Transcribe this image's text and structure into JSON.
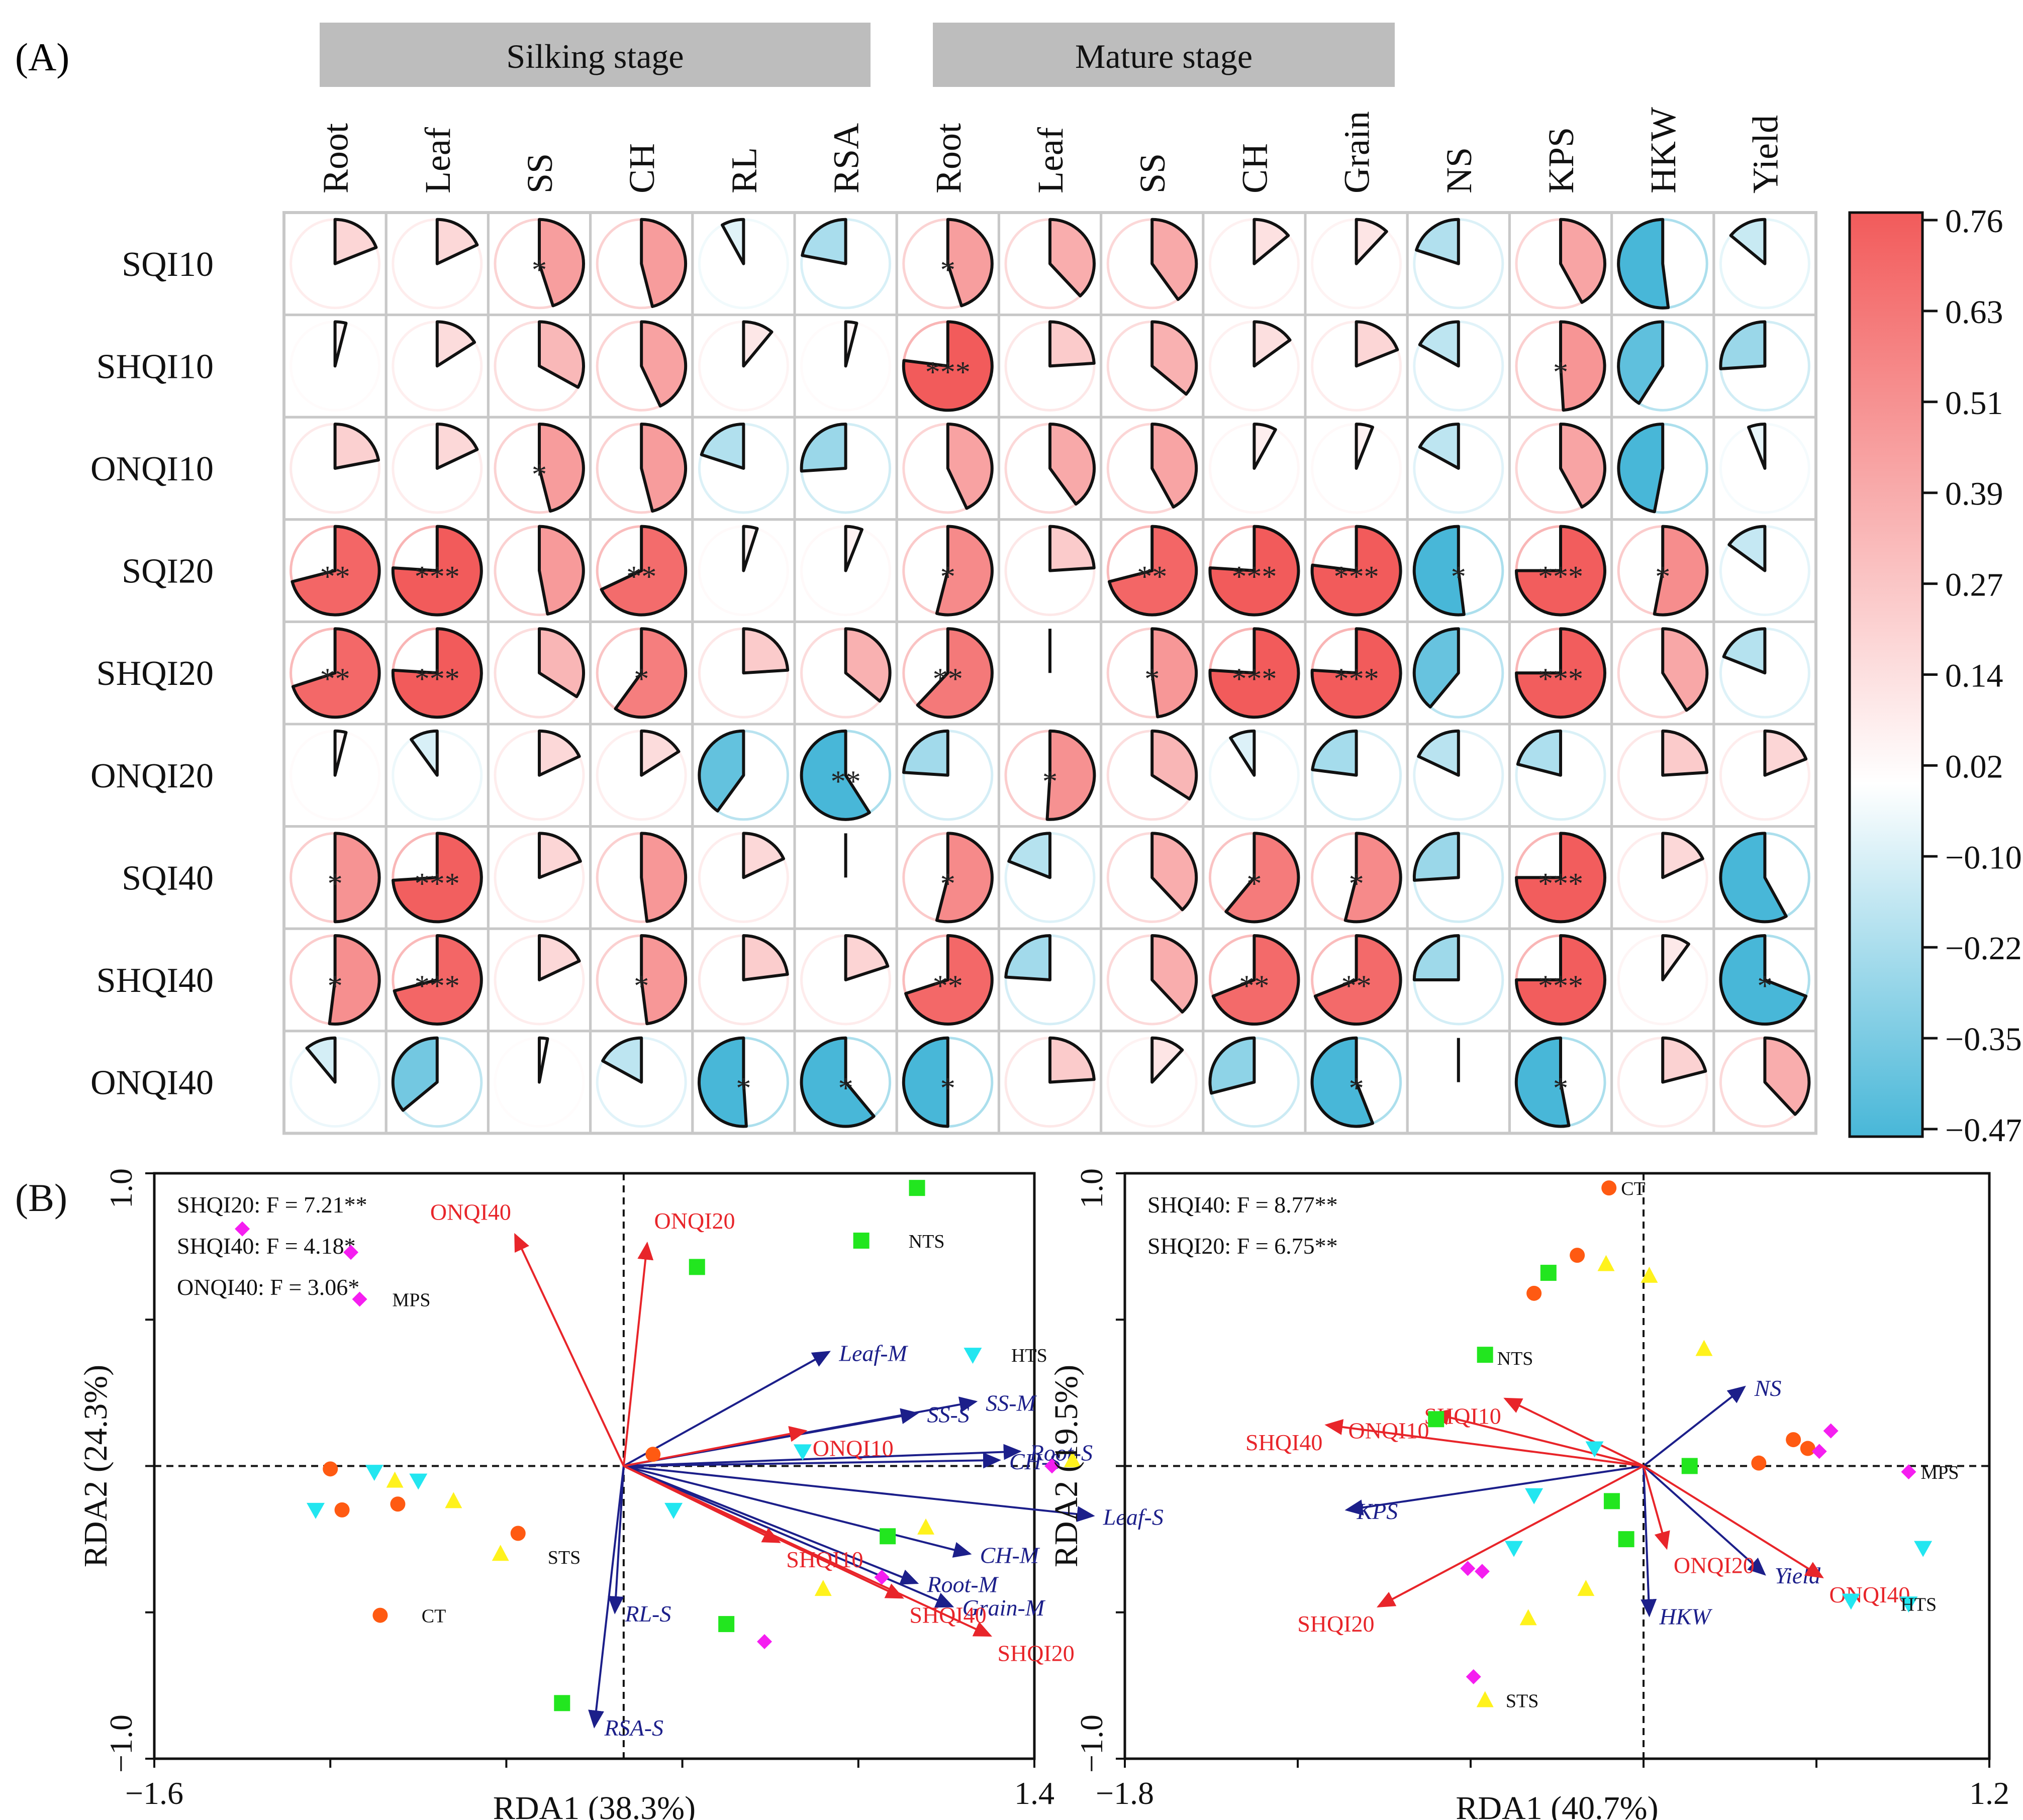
{
  "panel_a": {
    "label": "(A)",
    "groups": [
      {
        "label": "Silking stage",
        "start": 0,
        "end": 6
      },
      {
        "label": "Mature stage",
        "start": 6,
        "end": 11
      }
    ],
    "colorbar": {
      "ticks": [
        "0.76",
        "0.63",
        "0.51",
        "0.39",
        "0.27",
        "0.14",
        "0.02",
        "−0.10",
        "−0.22",
        "−0.35",
        "−0.47"
      ],
      "min": -0.47,
      "max": 0.76,
      "colors": {
        "neg": "#48b7d8",
        "mid": "#ffffff",
        "pos": "#f25b5b"
      }
    }
  },
  "chart_data": [
    {
      "type": "heatmap",
      "title": "",
      "columns": [
        "Root",
        "Leaf",
        "SS",
        "CH",
        "RL",
        "RSA",
        "Root",
        "Leaf",
        "SS",
        "CH",
        "Grain",
        "NS",
        "KPS",
        "HKW",
        "Yield"
      ],
      "rows": [
        "SQI10",
        "SHQI10",
        "ONQI10",
        "SQI20",
        "SHQI20",
        "ONQI20",
        "SQI40",
        "SHQI40",
        "ONQI40"
      ],
      "values": [
        [
          0.19,
          0.18,
          0.45,
          0.46,
          -0.08,
          -0.22,
          0.45,
          0.38,
          0.4,
          0.14,
          0.12,
          -0.2,
          0.42,
          -0.52,
          -0.14
        ],
        [
          0.04,
          0.16,
          0.33,
          0.43,
          0.11,
          0.04,
          0.77,
          0.24,
          0.36,
          0.15,
          0.19,
          -0.17,
          0.49,
          -0.41,
          -0.26
        ],
        [
          0.22,
          0.18,
          0.46,
          0.46,
          -0.2,
          -0.26,
          0.43,
          0.4,
          0.42,
          0.08,
          0.06,
          -0.17,
          0.42,
          -0.47,
          -0.06
        ],
        [
          0.71,
          0.76,
          0.47,
          0.68,
          0.05,
          0.06,
          0.54,
          0.24,
          0.71,
          0.76,
          0.77,
          -0.52,
          0.75,
          0.53,
          -0.15
        ],
        [
          0.7,
          0.76,
          0.34,
          0.6,
          0.24,
          0.36,
          0.62,
          0.0,
          0.48,
          0.76,
          0.76,
          -0.39,
          0.75,
          0.41,
          -0.19
        ],
        [
          0.04,
          -0.1,
          0.18,
          0.16,
          -0.4,
          -0.59,
          -0.24,
          0.51,
          0.34,
          -0.09,
          -0.23,
          -0.18,
          -0.21,
          0.24,
          0.19
        ],
        [
          0.5,
          0.74,
          0.19,
          0.48,
          0.18,
          0.0,
          0.54,
          -0.19,
          0.38,
          0.61,
          0.54,
          -0.26,
          0.75,
          0.18,
          -0.58
        ],
        [
          0.52,
          0.71,
          0.18,
          0.48,
          0.23,
          0.2,
          0.7,
          -0.24,
          0.38,
          0.69,
          0.69,
          -0.25,
          0.75,
          0.1,
          -0.69
        ],
        [
          -0.11,
          -0.36,
          0.03,
          -0.17,
          -0.51,
          -0.61,
          -0.5,
          0.24,
          0.12,
          -0.29,
          -0.56,
          0.0,
          -0.53,
          0.21,
          0.38
        ]
      ],
      "stars": [
        [
          "",
          "",
          "*",
          "",
          "",
          "",
          "*",
          "",
          "",
          "",
          "",
          "",
          "",
          "",
          ""
        ],
        [
          "",
          "",
          "",
          "",
          "",
          "",
          "***",
          "",
          "",
          "",
          "",
          "",
          "*",
          "",
          ""
        ],
        [
          "",
          "",
          "*",
          "",
          "",
          "",
          "",
          "",
          "",
          "",
          "",
          "",
          "",
          "",
          ""
        ],
        [
          "**",
          "***",
          "",
          "**",
          "",
          "",
          "*",
          "",
          "**",
          "***",
          "***",
          "*",
          "***",
          "*",
          ""
        ],
        [
          "**",
          "***",
          "",
          "*",
          "",
          "",
          "**",
          "",
          "*",
          "***",
          "***",
          "",
          "***",
          "",
          ""
        ],
        [
          "",
          "",
          "",
          "",
          "",
          "**",
          "",
          "*",
          "",
          "",
          "",
          "",
          "",
          "",
          ""
        ],
        [
          "*",
          "***",
          "",
          "",
          "",
          "",
          "*",
          "",
          "",
          "*",
          "*",
          "",
          "***",
          "",
          ""
        ],
        [
          "*",
          "***",
          "",
          "*",
          "",
          "",
          "**",
          "",
          "",
          "**",
          "**",
          "",
          "***",
          "",
          "*"
        ],
        [
          "",
          "",
          "",
          "",
          "*",
          "*",
          "*",
          "",
          "",
          "",
          "*",
          "",
          "*",
          "",
          ""
        ]
      ]
    },
    {
      "type": "scatter",
      "title": "(B)",
      "xlabel": "RDA1 (38.3%)",
      "ylabel": "RDA2 (24.3%)",
      "xlim": [
        -1.6,
        1.4
      ],
      "ylim": [
        -1.0,
        1.0
      ],
      "x_ticks": [
        "−1.6",
        "1.4"
      ],
      "y_ticks": [
        "1.0",
        "−1.0"
      ],
      "stats": [
        "SHQI20: F = 7.21**",
        "SHQI40: F = 4.18*",
        "ONQI40: F = 3.06*"
      ],
      "env_arrows": [
        {
          "name": "ONQI40",
          "x": -0.37,
          "y": 0.79
        },
        {
          "name": "ONQI20",
          "x": 0.08,
          "y": 0.76
        },
        {
          "name": "ONQI10",
          "x": 0.62,
          "y": 0.12
        },
        {
          "name": "SHQI10",
          "x": 0.53,
          "y": -0.26
        },
        {
          "name": "SHQI40",
          "x": 0.95,
          "y": -0.45
        },
        {
          "name": "SHQI20",
          "x": 1.25,
          "y": -0.58
        }
      ],
      "response_arrows": [
        {
          "name": "Leaf-M",
          "x": 0.7,
          "y": 0.39
        },
        {
          "name": "SS-S",
          "x": 1.0,
          "y": 0.18
        },
        {
          "name": "SS-M",
          "x": 1.2,
          "y": 0.22
        },
        {
          "name": "Root-S",
          "x": 1.35,
          "y": 0.05
        },
        {
          "name": "CH-S",
          "x": 1.28,
          "y": 0.02
        },
        {
          "name": "Leaf-S",
          "x": 1.6,
          "y": -0.17
        },
        {
          "name": "CH-M",
          "x": 1.18,
          "y": -0.3
        },
        {
          "name": "Root-M",
          "x": 1.0,
          "y": -0.4
        },
        {
          "name": "Grain-M",
          "x": 1.12,
          "y": -0.48
        },
        {
          "name": "RL-S",
          "x": -0.03,
          "y": -0.5
        },
        {
          "name": "RSA-S",
          "x": -0.1,
          "y": -0.89
        }
      ],
      "sample_labels": [
        {
          "name": "NTS",
          "x": 0.93,
          "y": 0.77
        },
        {
          "name": "HTS",
          "x": 1.28,
          "y": 0.38
        },
        {
          "name": "MPS",
          "x": -0.83,
          "y": 0.57
        },
        {
          "name": "STS",
          "x": -0.3,
          "y": -0.31
        },
        {
          "name": "CT",
          "x": -0.73,
          "y": -0.51
        }
      ],
      "points": {
        "CT": [
          [
            -1.0,
            -0.01
          ],
          [
            -0.96,
            -0.15
          ],
          [
            -0.77,
            -0.13
          ],
          [
            -0.36,
            -0.23
          ],
          [
            -0.83,
            -0.51
          ],
          [
            0.1,
            0.04
          ]
        ],
        "NTS": [
          [
            1.0,
            0.95
          ],
          [
            0.81,
            0.77
          ],
          [
            0.25,
            0.68
          ],
          [
            0.9,
            -0.24
          ],
          [
            0.35,
            -0.54
          ],
          [
            -0.21,
            -0.81
          ]
        ],
        "HTS": [
          [
            1.19,
            0.38
          ],
          [
            0.61,
            0.05
          ],
          [
            -0.85,
            -0.02
          ],
          [
            -0.7,
            -0.05
          ],
          [
            -1.05,
            -0.15
          ],
          [
            0.17,
            -0.15
          ]
        ],
        "MPS": [
          [
            -1.3,
            0.81
          ],
          [
            -0.93,
            0.73
          ],
          [
            -0.9,
            0.57
          ],
          [
            1.46,
            0.0
          ],
          [
            0.88,
            -0.38
          ],
          [
            0.48,
            -0.6
          ]
        ],
        "STS": [
          [
            -0.78,
            -0.05
          ],
          [
            -0.58,
            -0.12
          ],
          [
            -0.42,
            -0.3
          ],
          [
            1.03,
            -0.21
          ],
          [
            1.53,
            0.02
          ],
          [
            0.68,
            -0.42
          ]
        ]
      }
    },
    {
      "type": "scatter",
      "title": "",
      "xlabel": "RDA1 (40.7%)",
      "ylabel": "RDA2 (19.5%)",
      "xlim": [
        -1.8,
        1.2
      ],
      "ylim": [
        -1.0,
        1.0
      ],
      "x_ticks": [
        "−1.8",
        "1.2"
      ],
      "y_ticks": [
        "1.0",
        "−1.0"
      ],
      "stats": [
        "SHQI40: F = 8.77**",
        "SHQI20: F = 6.75**"
      ],
      "env_arrows": [
        {
          "name": "SHQI10",
          "x": -0.48,
          "y": 0.23
        },
        {
          "name": "ONQI10",
          "x": -0.73,
          "y": 0.18
        },
        {
          "name": "SHQI40",
          "x": -1.1,
          "y": 0.14
        },
        {
          "name": "SHQI20",
          "x": -0.92,
          "y": -0.48
        },
        {
          "name": "ONQI20",
          "x": 0.08,
          "y": -0.28
        },
        {
          "name": "ONQI40",
          "x": 0.62,
          "y": -0.38
        }
      ],
      "response_arrows": [
        {
          "name": "NS",
          "x": 0.35,
          "y": 0.27
        },
        {
          "name": "KPS",
          "x": -1.03,
          "y": -0.15
        },
        {
          "name": "HKW",
          "x": 0.02,
          "y": -0.51
        },
        {
          "name": "Yield",
          "x": 0.42,
          "y": -0.37
        }
      ],
      "sample_labels": [
        {
          "name": "CT",
          "x": -0.12,
          "y": 0.95
        },
        {
          "name": "NTS",
          "x": -0.55,
          "y": 0.37
        },
        {
          "name": "MPS",
          "x": 0.92,
          "y": -0.02
        },
        {
          "name": "HTS",
          "x": 0.85,
          "y": -0.47
        },
        {
          "name": "STS",
          "x": -0.52,
          "y": -0.8
        }
      ],
      "points": {
        "CT": [
          [
            -0.12,
            0.95
          ],
          [
            -0.23,
            0.72
          ],
          [
            -0.38,
            0.59
          ],
          [
            0.4,
            0.01
          ],
          [
            0.52,
            0.09
          ],
          [
            0.57,
            0.06
          ]
        ],
        "NTS": [
          [
            -0.33,
            0.66
          ],
          [
            -0.55,
            0.38
          ],
          [
            -0.72,
            0.16
          ],
          [
            -0.11,
            -0.12
          ],
          [
            0.16,
            0.0
          ],
          [
            -0.06,
            -0.25
          ]
        ],
        "HTS": [
          [
            -0.17,
            0.06
          ],
          [
            -0.38,
            -0.1
          ],
          [
            -0.45,
            -0.28
          ],
          [
            0.72,
            -0.46
          ],
          [
            0.92,
            -0.47
          ],
          [
            0.97,
            -0.28
          ]
        ],
        "MPS": [
          [
            0.65,
            0.12
          ],
          [
            0.61,
            0.05
          ],
          [
            0.92,
            -0.02
          ],
          [
            -0.61,
            -0.35
          ],
          [
            -0.59,
            -0.72
          ],
          [
            -0.56,
            -0.36
          ]
        ],
        "STS": [
          [
            -0.13,
            0.69
          ],
          [
            0.02,
            0.65
          ],
          [
            0.21,
            0.4
          ],
          [
            -0.2,
            -0.42
          ],
          [
            -0.4,
            -0.52
          ],
          [
            -0.55,
            -0.8
          ]
        ]
      }
    }
  ]
}
